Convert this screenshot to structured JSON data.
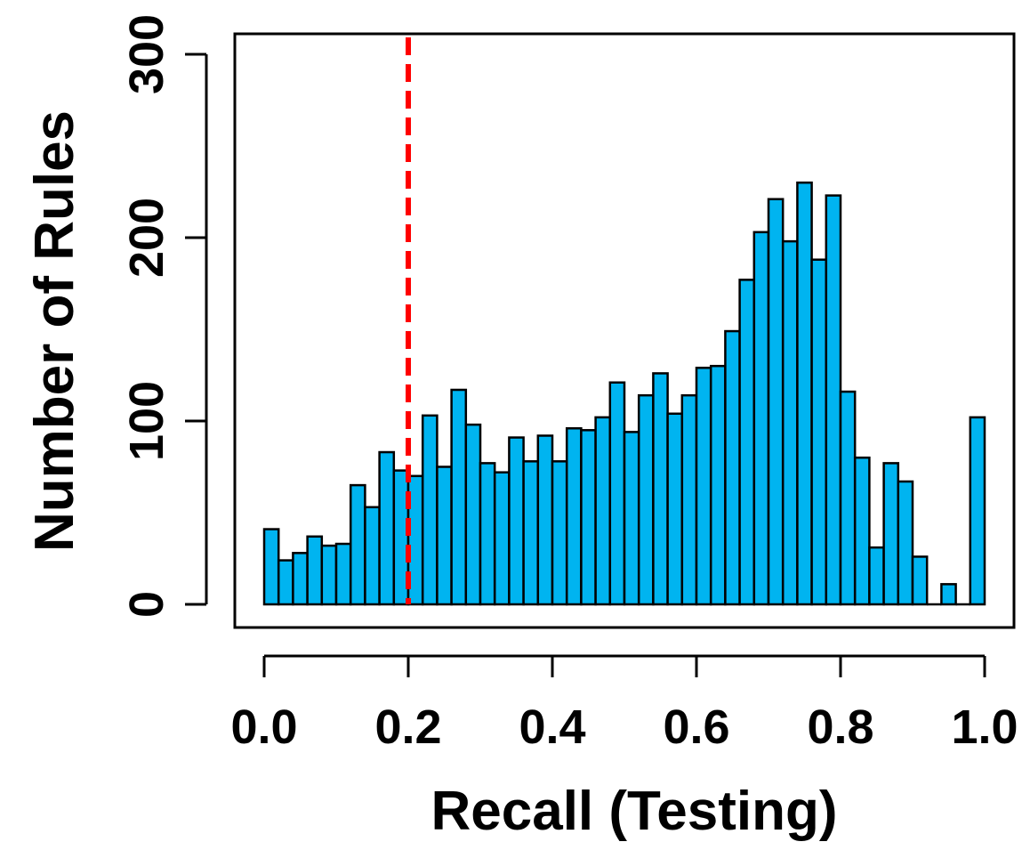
{
  "chart_data": {
    "type": "bar",
    "title": "",
    "xlabel": "Recall (Testing)",
    "ylabel": "Number of Rules",
    "xlim": [
      0.0,
      1.0
    ],
    "ylim": [
      0,
      300
    ],
    "x_ticks": [
      "0.0",
      "0.2",
      "0.4",
      "0.6",
      "0.8",
      "1.0"
    ],
    "y_ticks": [
      "0",
      "100",
      "200",
      "300"
    ],
    "bin_width": 0.02,
    "bin_starts": [
      0.0,
      0.02,
      0.04,
      0.06,
      0.08,
      0.1,
      0.12,
      0.14,
      0.16,
      0.18,
      0.2,
      0.22,
      0.24,
      0.26,
      0.28,
      0.3,
      0.32,
      0.34,
      0.36,
      0.38,
      0.4,
      0.42,
      0.44,
      0.46,
      0.48,
      0.5,
      0.52,
      0.54,
      0.56,
      0.58,
      0.6,
      0.62,
      0.64,
      0.66,
      0.68,
      0.7,
      0.72,
      0.74,
      0.76,
      0.78,
      0.8,
      0.82,
      0.84,
      0.86,
      0.88,
      0.9,
      0.92,
      0.94,
      0.96,
      0.98
    ],
    "values": [
      41,
      24,
      28,
      37,
      32,
      33,
      65,
      53,
      83,
      73,
      70,
      103,
      75,
      117,
      98,
      77,
      72,
      91,
      78,
      92,
      78,
      96,
      95,
      102,
      121,
      94,
      114,
      126,
      104,
      114,
      129,
      130,
      149,
      177,
      203,
      221,
      198,
      230,
      188,
      223,
      116,
      80,
      31,
      77,
      67,
      26,
      0,
      11,
      0,
      102
    ],
    "bar_color": "#00b4f0",
    "bar_edge_color": "#000000",
    "reference_line": {
      "x": 0.2,
      "color": "#ff0000",
      "style": "dashed"
    },
    "grid": false,
    "legend": "none"
  }
}
